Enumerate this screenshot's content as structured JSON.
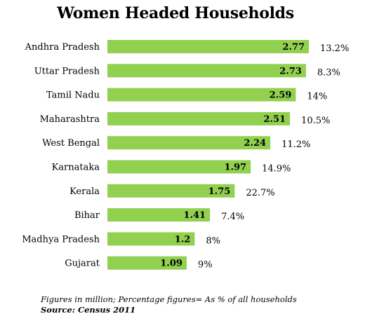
{
  "chart_data": {
    "type": "bar",
    "orientation": "horizontal",
    "title": "Women Headed Households",
    "categories": [
      "Andhra Pradesh",
      "Uttar Pradesh",
      "Tamil Nadu",
      "Maharashtra",
      "West Bengal",
      "Karnataka",
      "Kerala",
      "Bihar",
      "Madhya Pradesh",
      "Gujarat"
    ],
    "values": [
      2.77,
      2.73,
      2.59,
      2.51,
      2.24,
      1.97,
      1.75,
      1.41,
      1.2,
      1.09
    ],
    "value_labels": [
      "2.77",
      "2.73",
      "2.59",
      "2.51",
      "2.24",
      "1.97",
      "1.75",
      "1.41",
      "1.2",
      "1.09"
    ],
    "percentages": [
      "13.2%",
      "8.3%",
      "14%",
      "10.5%",
      "11.2%",
      "14.9%",
      "22.7%",
      "7.4%",
      "8%",
      "9%"
    ],
    "bar_color": "#92d050",
    "xlim": [
      0,
      2.77
    ],
    "grid": false,
    "legend": "none"
  },
  "footnote": {
    "note": "Figures in million; Percentage figures= As % of all households",
    "source": "Source: Census 2011"
  }
}
